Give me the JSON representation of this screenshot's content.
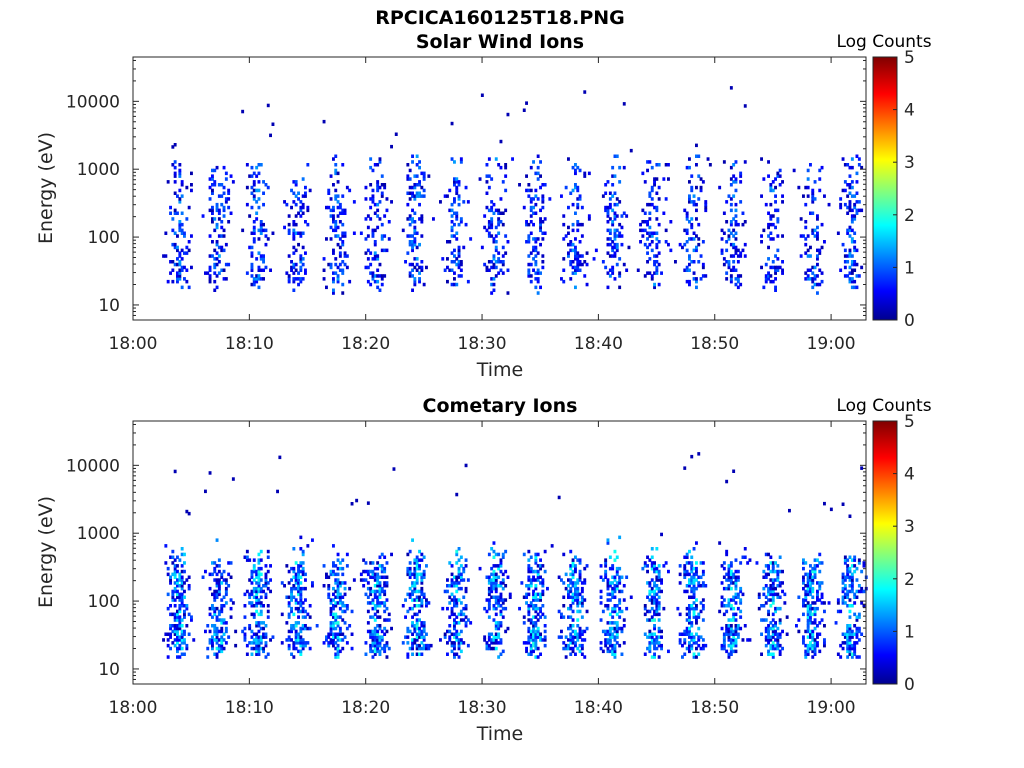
{
  "figure_title": "RPCICA160125T18.PNG",
  "panels": [
    {
      "title": "Solar Wind Ions",
      "xlabel": "Time",
      "ylabel": "Energy (eV)",
      "colorbar_label": "Log Counts"
    },
    {
      "title": "Cometary Ions",
      "xlabel": "Time",
      "ylabel": "Energy (eV)",
      "colorbar_label": "Log Counts"
    }
  ],
  "x_ticks": [
    "18:00",
    "18:10",
    "18:20",
    "18:30",
    "18:40",
    "18:50",
    "19:00"
  ],
  "y_ticks": [
    "10",
    "100",
    "1000",
    "10000"
  ],
  "colorbar_ticks": [
    "0",
    "1",
    "2",
    "3",
    "4",
    "5"
  ],
  "chart_data": [
    {
      "type": "heatmap",
      "title": "Solar Wind Ions",
      "xlabel": "Time",
      "ylabel": "Energy (eV)",
      "yscale": "log",
      "x_range_minutes_after_1800": [
        0,
        63
      ],
      "ylim": [
        6,
        45000
      ],
      "colorbar": {
        "label": "Log Counts",
        "range": [
          0,
          5
        ],
        "colormap": "jet"
      },
      "x_ticks": [
        "18:00",
        "18:10",
        "18:20",
        "18:30",
        "18:40",
        "18:50",
        "19:00"
      ],
      "y_ticks": [
        10,
        100,
        1000,
        10000
      ],
      "data_extent_minutes": [
        2.3,
        63
      ],
      "burst_period_minutes": 3.4,
      "energy_bands_eV": [
        [
          20,
          40
        ],
        [
          50,
          150
        ],
        [
          150,
          900
        ]
      ],
      "typical_log_counts": [
        0,
        1
      ],
      "max_log_counts": 1.5
    },
    {
      "type": "heatmap",
      "title": "Cometary Ions",
      "xlabel": "Time",
      "ylabel": "Energy (eV)",
      "yscale": "log",
      "x_range_minutes_after_1800": [
        0,
        63
      ],
      "ylim": [
        6,
        45000
      ],
      "colorbar": {
        "label": "Log Counts",
        "range": [
          0,
          5
        ],
        "colormap": "jet"
      },
      "x_ticks": [
        "18:00",
        "18:10",
        "18:20",
        "18:30",
        "18:40",
        "18:50",
        "19:00"
      ],
      "y_ticks": [
        10,
        100,
        1000,
        10000
      ],
      "data_extent_minutes": [
        2.3,
        63
      ],
      "burst_period_minutes": 3.4,
      "energy_bands_eV": [
        [
          17,
          35
        ],
        [
          50,
          150
        ],
        [
          150,
          350
        ]
      ],
      "typical_log_counts": [
        0,
        1.5
      ],
      "max_log_counts": 2
    }
  ]
}
